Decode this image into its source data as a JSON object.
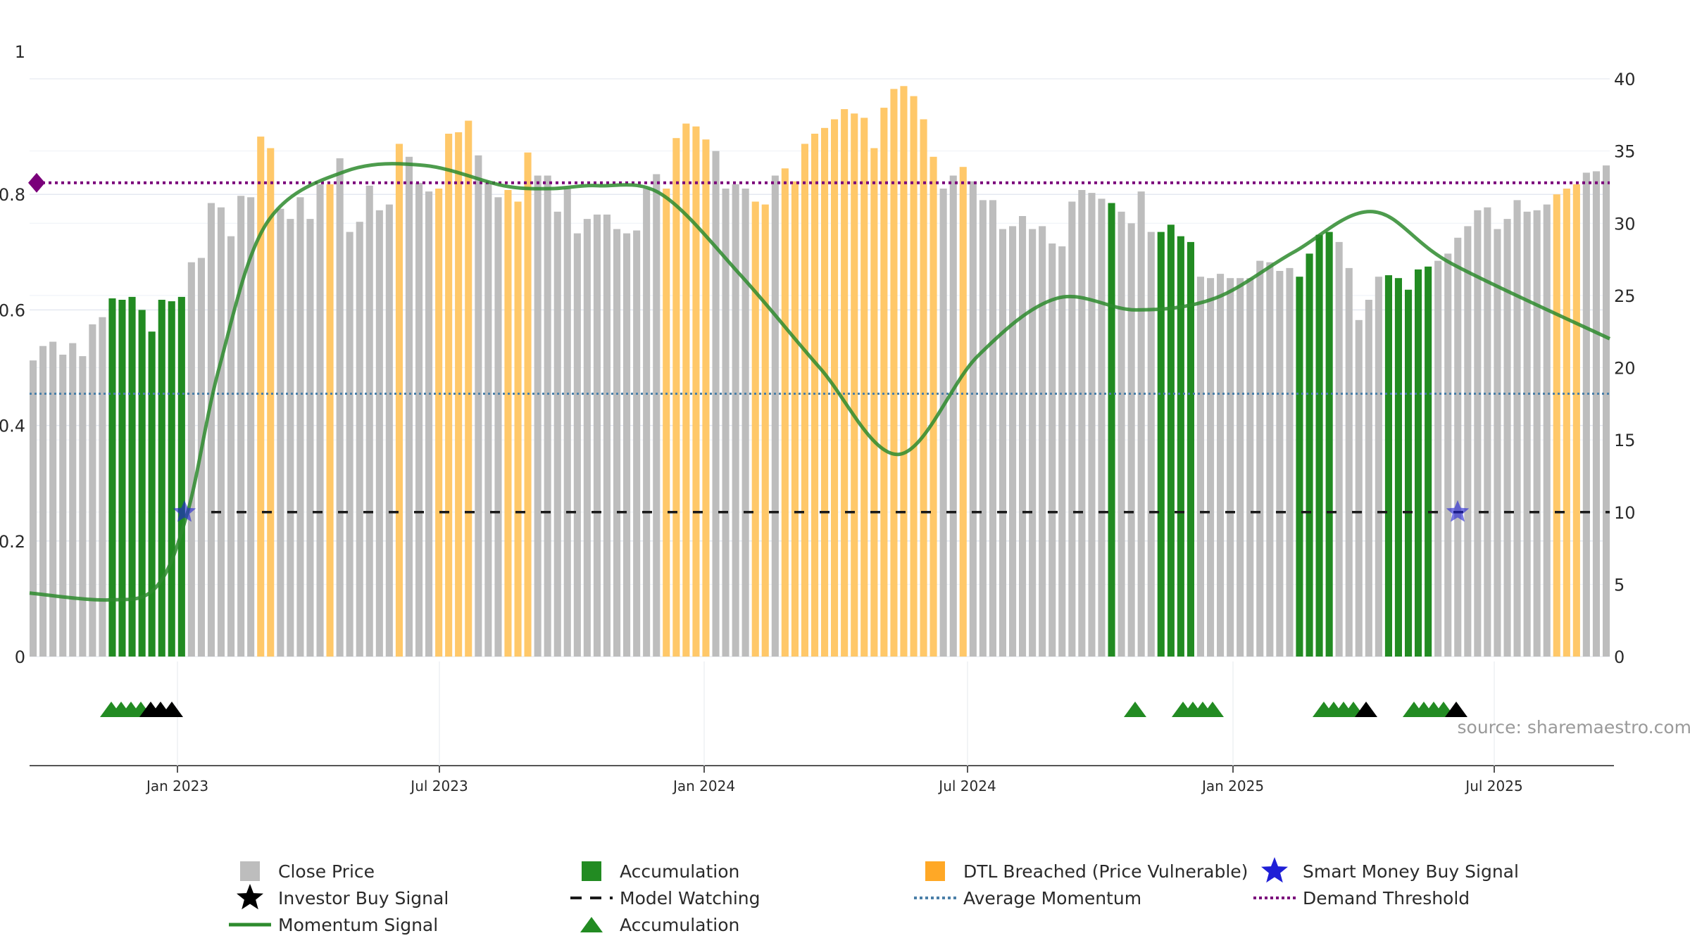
{
  "colors": {
    "close": "#bdbdbd",
    "accumulation": "#228b22",
    "dtl": "#ffc869",
    "momentum": "#2e8b2e",
    "investor": "#000000",
    "smart_money": "#1f1fd6",
    "avg_momentum": "#4a7fa8",
    "demand": "#7a007a",
    "model": "#1a1a1a",
    "grid": "#e4e8f0"
  },
  "source_text": "source: sharemaestro.com",
  "legend": [
    {
      "label": "Close Price",
      "icon": "gray-square"
    },
    {
      "label": "Accumulation",
      "icon": "green-square"
    },
    {
      "label": "DTL Breached (Price Vulnerable)",
      "icon": "orange-square"
    },
    {
      "label": "Smart Money Buy Signal",
      "icon": "blue-star"
    },
    {
      "label": "Investor Buy Signal",
      "icon": "black-star"
    },
    {
      "label": "Model Watching",
      "icon": "dashed-line"
    },
    {
      "label": "Average Momentum",
      "icon": "dotted-blue-line"
    },
    {
      "label": "Demand Threshold",
      "icon": "dotted-purple-line"
    },
    {
      "label": "Momentum Signal",
      "icon": "green-line"
    },
    {
      "label": "Accumulation",
      "icon": "green-triangle"
    }
  ],
  "chart_data": {
    "type": "bar",
    "left_axis": {
      "range": [
        0,
        1
      ],
      "ticks": [
        "0",
        "0.2",
        "0.4",
        "0.6",
        "0.8",
        "1"
      ]
    },
    "right_axis": {
      "range": [
        0,
        40
      ],
      "ticks": [
        "0",
        "5",
        "10",
        "15",
        "20",
        "25",
        "30",
        "35",
        "40"
      ]
    },
    "x_ticks": [
      "Jan 2023",
      "Jul 2023",
      "Jan 2024",
      "Jul 2024",
      "Jan 2025",
      "Jul 2025"
    ],
    "price_bars": {
      "values": [
        20.5,
        21.5,
        21.8,
        20.9,
        21.7,
        20.8,
        23.0,
        23.5,
        24.8,
        24.7,
        24.9,
        24.0,
        22.5,
        24.7,
        24.6,
        24.9,
        27.3,
        27.6,
        31.4,
        31.1,
        29.1,
        31.9,
        31.8,
        36.0,
        35.2,
        31.0,
        30.3,
        31.8,
        30.3,
        32.7,
        32.7,
        34.5,
        29.4,
        30.1,
        32.6,
        30.9,
        31.3,
        35.5,
        34.6,
        32.8,
        32.2,
        32.4,
        36.2,
        36.3,
        37.1,
        34.7,
        32.8,
        31.8,
        32.3,
        31.5,
        34.9,
        33.3,
        33.3,
        30.8,
        32.4,
        29.3,
        30.3,
        30.6,
        30.6,
        29.6,
        29.3,
        29.5,
        32.4,
        33.4,
        32.4,
        35.9,
        36.9,
        36.7,
        35.8,
        35.0,
        32.4,
        32.7,
        32.4,
        31.5,
        31.3,
        33.3,
        33.8,
        32.9,
        35.5,
        36.2,
        36.6,
        37.2,
        37.9,
        37.6,
        37.3,
        35.2,
        38.0,
        39.3,
        39.5,
        38.8,
        37.2,
        34.6,
        32.4,
        33.3,
        33.9,
        32.9,
        31.6,
        31.6,
        29.6,
        29.8,
        30.5,
        29.6,
        29.8,
        28.6,
        28.4,
        31.5,
        32.3,
        32.1,
        31.7,
        31.4,
        30.8,
        30.0,
        32.2,
        29.4,
        29.4,
        29.9,
        29.1,
        28.7,
        26.3,
        26.2,
        26.5,
        26.2,
        26.2,
        26.2,
        27.4,
        27.3,
        26.7,
        26.9,
        26.3,
        27.9,
        29.2,
        29.4,
        28.7,
        26.9,
        23.3,
        24.7,
        26.3,
        26.4,
        26.2,
        25.4,
        26.8,
        27.0,
        27.4,
        27.9,
        29.0,
        29.8,
        30.9,
        31.1,
        29.6,
        30.3,
        31.6,
        30.8,
        30.9,
        31.3,
        32.0,
        32.4,
        32.7,
        33.5,
        33.6,
        34.0
      ],
      "accumulation_index": [
        8,
        9,
        10,
        11,
        12,
        13,
        14,
        15,
        109,
        114,
        115,
        116,
        117,
        128,
        129,
        130,
        131,
        137,
        138,
        139,
        140,
        141
      ],
      "dtl_index": [
        23,
        24,
        30,
        37,
        41,
        42,
        43,
        44,
        48,
        49,
        50,
        64,
        65,
        66,
        67,
        68,
        73,
        74,
        76,
        77,
        78,
        79,
        80,
        81,
        82,
        83,
        84,
        85,
        86,
        87,
        88,
        89,
        90,
        91,
        94,
        154,
        155,
        156
      ]
    },
    "momentum": {
      "x": [
        0.0,
        0.05,
        0.08,
        0.1,
        0.12,
        0.15,
        0.2,
        0.25,
        0.3,
        0.33,
        0.36,
        0.4,
        0.45,
        0.5,
        0.55,
        0.6,
        0.65,
        0.7,
        0.75,
        0.8,
        0.85,
        0.9,
        1.0
      ],
      "y": [
        0.11,
        0.098,
        0.12,
        0.25,
        0.5,
        0.75,
        0.84,
        0.85,
        0.815,
        0.81,
        0.815,
        0.8,
        0.66,
        0.5,
        0.35,
        0.52,
        0.62,
        0.6,
        0.62,
        0.7,
        0.77,
        0.68,
        0.55
      ]
    },
    "avg_momentum_value": 0.455,
    "model_watching_value": 0.25,
    "demand_threshold_value": 0.82,
    "smart_money_signals": [
      {
        "x": "Jan 2023",
        "y": 0.25
      },
      {
        "x": "Jun 2025",
        "y": 0.25
      }
    ],
    "accumulation_triangles": 23,
    "investor_triangles": 5
  }
}
